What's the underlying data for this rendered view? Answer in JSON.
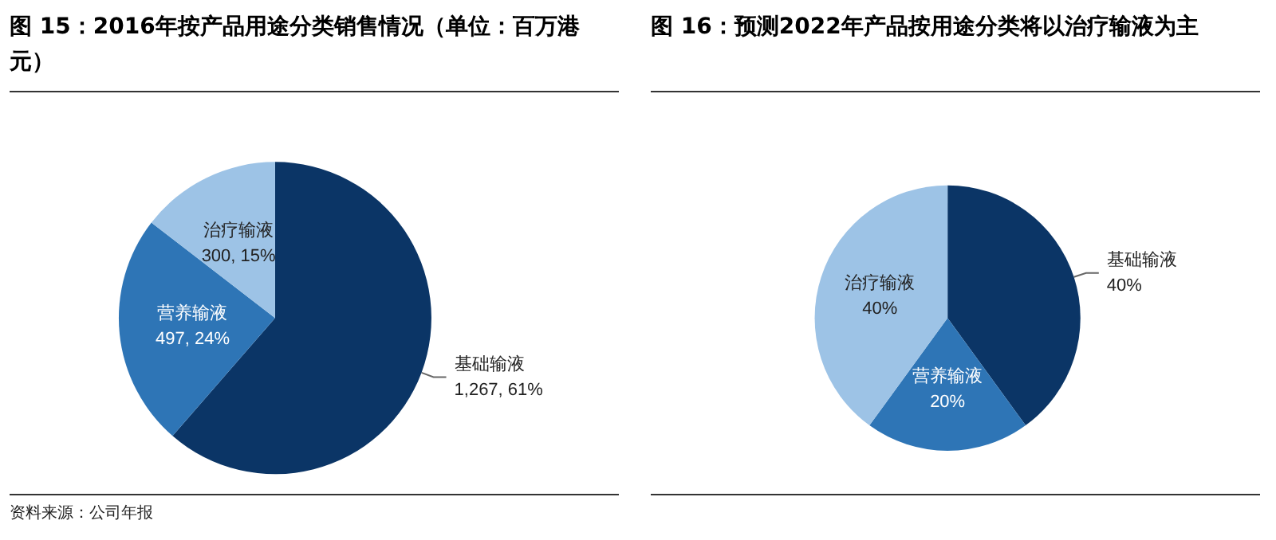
{
  "chart_data": [
    {
      "type": "pie",
      "title": "图 15：2016年按产品用途分类销售情况（单位：百万港元）",
      "categories": [
        "基础输液",
        "营养输液",
        "治疗输液"
      ],
      "values": [
        1267,
        497,
        300
      ],
      "value_labels": [
        "1,267, 61%",
        "497, 24%",
        "300, 15%"
      ],
      "colors": [
        "#0b3566",
        "#2e75b6",
        "#9dc3e6"
      ],
      "annotations": [
        "资料来源：公司年报"
      ],
      "legend": false
    },
    {
      "type": "pie",
      "title": "图 16：预测2022年产品按用途分类将以治疗输液为主",
      "categories": [
        "基础输液",
        "营养输液",
        "治疗输液"
      ],
      "values": [
        40,
        20,
        40
      ],
      "value_labels": [
        "40%",
        "20%",
        "40%"
      ],
      "colors": [
        "#0b3566",
        "#2e75b6",
        "#9dc3e6"
      ],
      "legend": false
    }
  ]
}
